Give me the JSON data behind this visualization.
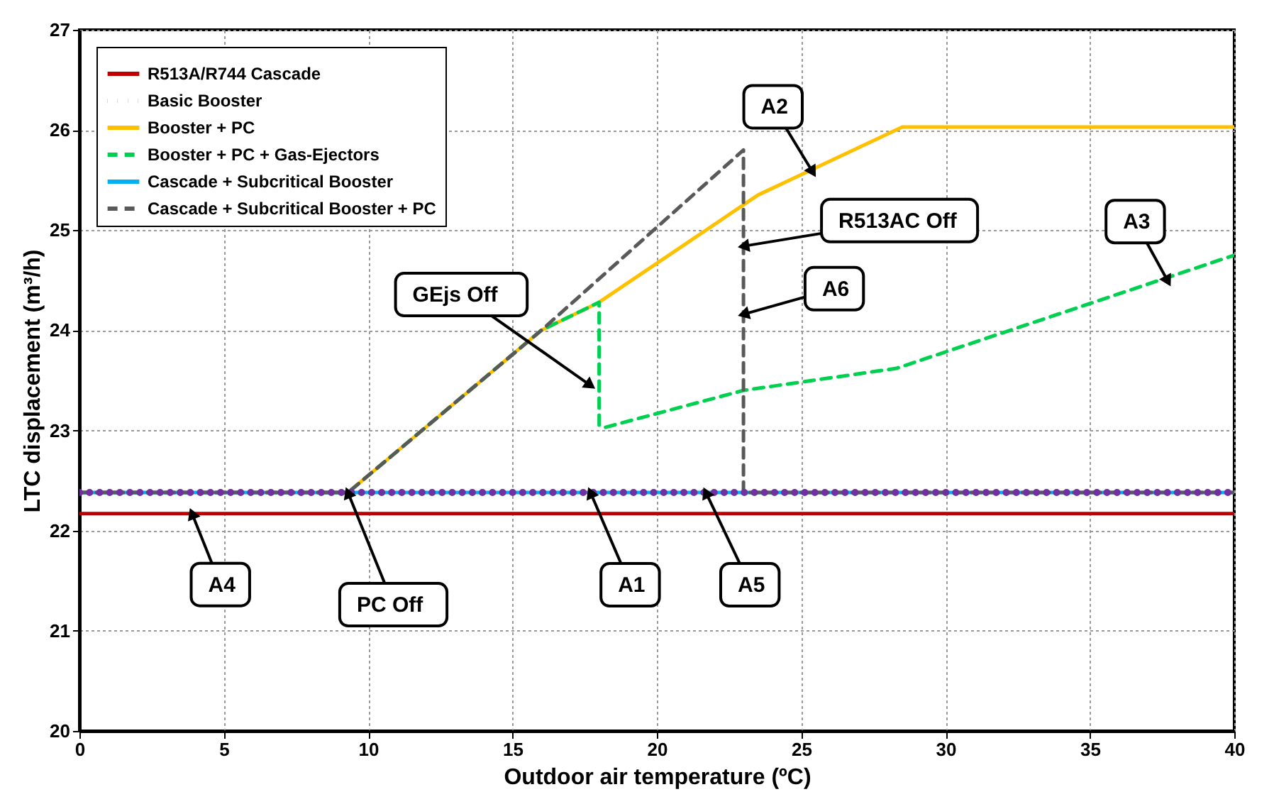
{
  "chart_data": {
    "type": "line",
    "xlabel": "Outdoor air temperature (ºC)",
    "ylabel": "LTC displacement (m³/h)",
    "xlim": [
      0,
      40
    ],
    "xticks": [
      0,
      5,
      10,
      15,
      20,
      25,
      30,
      35,
      40
    ],
    "ylim": [
      20,
      27
    ],
    "yticks": [
      20,
      21,
      22,
      23,
      24,
      25,
      26,
      27
    ],
    "grid": true,
    "legend": "top left",
    "series": [
      {
        "name": "R513A/R744 Cascade",
        "color": "#c00000",
        "line_style": "solid",
        "x": [
          0,
          40
        ],
        "values": [
          22.17,
          22.17
        ]
      },
      {
        "name": "Basic Booster",
        "color": "#7030a0",
        "line_style": "dotted",
        "x": [
          0,
          40
        ],
        "values": [
          22.38,
          22.38
        ]
      },
      {
        "name": "Booster + PC",
        "color": "#ffc000",
        "line_style": "solid",
        "x": [
          9.3,
          16,
          18,
          23.5,
          28.5,
          40
        ],
        "values": [
          22.38,
          24.0,
          24.28,
          25.35,
          26.03,
          26.03
        ]
      },
      {
        "name": "Booster + PC + Gas-Ejectors",
        "color": "#00d050",
        "line_style": "dashed",
        "x": [
          0,
          9.3,
          16,
          18,
          18,
          18.2,
          23,
          28.3,
          40
        ],
        "values": [
          22.38,
          22.38,
          24.0,
          24.28,
          23.05,
          23.03,
          23.4,
          23.62,
          24.75
        ]
      },
      {
        "name": "Cascade + Subcritical Booster",
        "color": "#00b0f0",
        "line_style": "solid",
        "x": [
          0,
          40
        ],
        "values": [
          22.38,
          22.38
        ]
      },
      {
        "name": "Cascade + Subcritical Booster + PC",
        "color": "#595959",
        "line_style": "dashed",
        "x": [
          0,
          9.3,
          16,
          23,
          23,
          40
        ],
        "values": [
          22.38,
          22.38,
          24.0,
          25.8,
          22.38,
          22.38
        ]
      }
    ],
    "annotations": [
      {
        "text": "GEjs Off",
        "x": 17.7,
        "y": 23.45
      },
      {
        "text": "PC Off",
        "x": 9.3,
        "y": 22.38
      },
      {
        "text": "A1",
        "x": 17.7,
        "y": 22.38
      },
      {
        "text": "A5",
        "x": 21.7,
        "y": 22.38
      },
      {
        "text": "A4",
        "x": 3.9,
        "y": 22.17
      },
      {
        "text": "A2",
        "x": 25.4,
        "y": 25.58
      },
      {
        "text": "R513AC Off",
        "x": 23,
        "y": 24.84
      },
      {
        "text": "A6",
        "x": 23,
        "y": 24.16
      },
      {
        "text": "A3",
        "x": 37.7,
        "y": 24.49
      }
    ]
  }
}
